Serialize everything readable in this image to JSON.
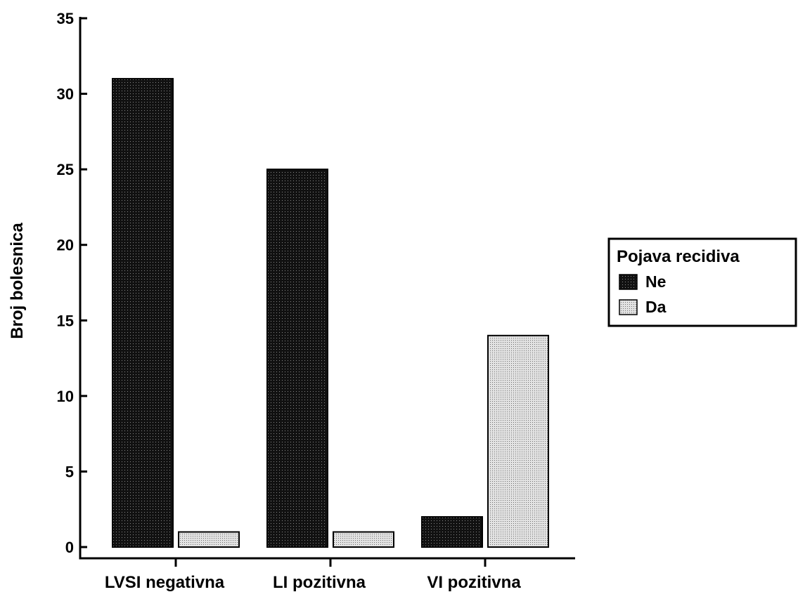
{
  "chart_data": {
    "type": "bar",
    "title": "",
    "xlabel": "",
    "ylabel": "Broj bolesnica",
    "ylim": [
      0,
      35
    ],
    "yticks": [
      0,
      5,
      10,
      15,
      20,
      25,
      30,
      35
    ],
    "categories": [
      "LVSI negativna",
      "LI pozitivna",
      "VI pozitivna"
    ],
    "series": [
      {
        "name": "Ne",
        "values": [
          31,
          25,
          2
        ],
        "color": "#111111",
        "pattern": "dark-dotted"
      },
      {
        "name": "Da",
        "values": [
          1,
          1,
          14
        ],
        "color": "#d9d9d9",
        "pattern": "light-dotted"
      }
    ],
    "legend": {
      "title": "Pojava recidiva",
      "position": "right"
    },
    "grid": false
  }
}
